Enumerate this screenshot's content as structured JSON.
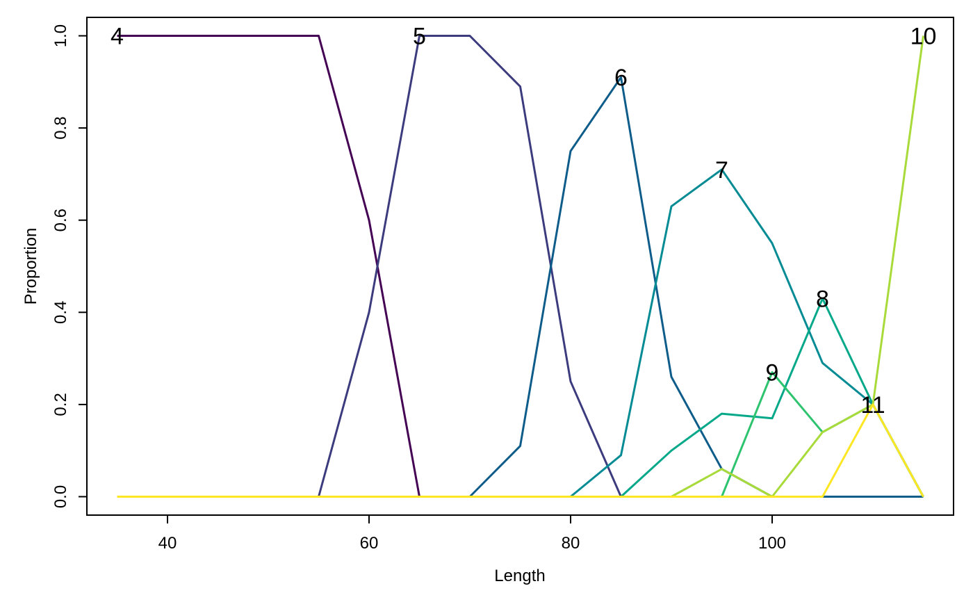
{
  "chart_data": {
    "type": "line",
    "title": "",
    "xlabel": "Length",
    "ylabel": "Proportion",
    "xlim": [
      32,
      118
    ],
    "ylim": [
      -0.04,
      1.04
    ],
    "x_ticks": [
      40,
      60,
      80,
      100
    ],
    "y_ticks": [
      0.0,
      0.2,
      0.4,
      0.6,
      0.8,
      1.0
    ],
    "x_tick_labels": [
      "40",
      "60",
      "80",
      "100"
    ],
    "y_tick_labels": [
      "0.0",
      "0.2",
      "0.4",
      "0.6",
      "0.8",
      "1.0"
    ],
    "grid": false,
    "legend": "none",
    "x": [
      35,
      40,
      45,
      50,
      55,
      60,
      65,
      70,
      75,
      80,
      85,
      90,
      95,
      100,
      105,
      110,
      115
    ],
    "series": [
      {
        "name": "4",
        "color": "#440154",
        "values": [
          1,
          1,
          1,
          1,
          1,
          0.6,
          0,
          0,
          0,
          0,
          0,
          0,
          0,
          0,
          0,
          0,
          0
        ],
        "label_at": [
          35,
          1.0
        ]
      },
      {
        "name": "5",
        "color": "#3b3b7e",
        "values": [
          0,
          0,
          0,
          0,
          0,
          0.4,
          1,
          1,
          0.89,
          0.25,
          0,
          0,
          0,
          0,
          0,
          0,
          0
        ],
        "label_at": [
          65,
          1.0
        ]
      },
      {
        "name": "6",
        "color": "#0e5c8a",
        "values": [
          0,
          0,
          0,
          0,
          0,
          0,
          0,
          0,
          0.11,
          0.75,
          0.91,
          0.26,
          0.06,
          0,
          0,
          0,
          0
        ],
        "label_at": [
          85,
          0.91
        ]
      },
      {
        "name": "7",
        "color": "#058b94",
        "values": [
          0,
          0,
          0,
          0,
          0,
          0,
          0,
          0,
          0,
          0,
          0.09,
          0.63,
          0.71,
          0.55,
          0.29,
          0.2,
          0
        ],
        "label_at": [
          95,
          0.71
        ]
      },
      {
        "name": "8",
        "color": "#06a88a",
        "values": [
          0,
          0,
          0,
          0,
          0,
          0,
          0,
          0,
          0,
          0,
          0,
          0.1,
          0.18,
          0.17,
          0.43,
          0.2,
          0
        ],
        "label_at": [
          105,
          0.43
        ]
      },
      {
        "name": "9",
        "color": "#2ec46f",
        "values": [
          0,
          0,
          0,
          0,
          0,
          0,
          0,
          0,
          0,
          0,
          0,
          0,
          0,
          0.27,
          0.14,
          0.2,
          0
        ],
        "label_at": [
          100,
          0.27
        ]
      },
      {
        "name": "10",
        "color": "#a8db3a",
        "values": [
          0,
          0,
          0,
          0,
          0,
          0,
          0,
          0,
          0,
          0,
          0,
          0,
          0.06,
          0,
          0.14,
          0.2,
          1.0
        ],
        "label_at": [
          115,
          1.0
        ]
      },
      {
        "name": "11",
        "color": "#fde725",
        "values": [
          0,
          0,
          0,
          0,
          0,
          0,
          0,
          0,
          0,
          0,
          0,
          0,
          0,
          0,
          0,
          0.2,
          0
        ],
        "label_at": [
          110,
          0.2
        ]
      }
    ]
  }
}
